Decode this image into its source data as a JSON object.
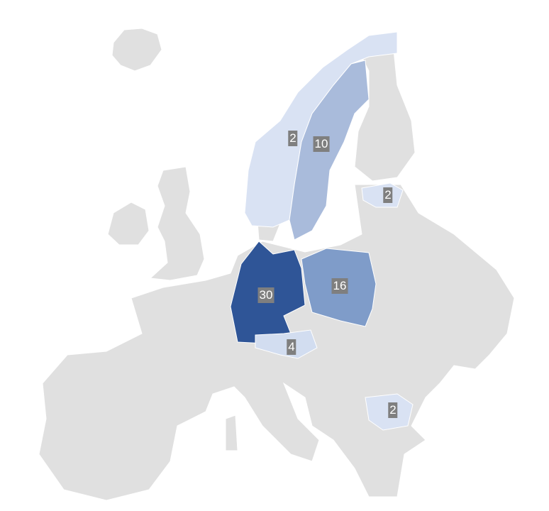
{
  "chart_data": {
    "type": "map",
    "region": "Europe",
    "colors": {
      "base": "#e0e0e0",
      "scale_low": "#d9e2f3",
      "scale_high": "#2f5597",
      "label_bg": "#7f7f7f",
      "label_text": "#ffffff"
    },
    "regions": [
      {
        "name": "Germany",
        "value": 30,
        "color": "#2f5597"
      },
      {
        "name": "Poland",
        "value": 16,
        "color": "#7f9cc9"
      },
      {
        "name": "Sweden",
        "value": 10,
        "color": "#a9bbdb"
      },
      {
        "name": "Austria",
        "value": 4,
        "color": "#d2ddf0"
      },
      {
        "name": "Norway",
        "value": 2,
        "color": "#d9e2f3"
      },
      {
        "name": "Estonia",
        "value": 2,
        "color": "#d9e2f3"
      },
      {
        "name": "Bulgaria",
        "value": 2,
        "color": "#d9e2f3"
      }
    ]
  }
}
